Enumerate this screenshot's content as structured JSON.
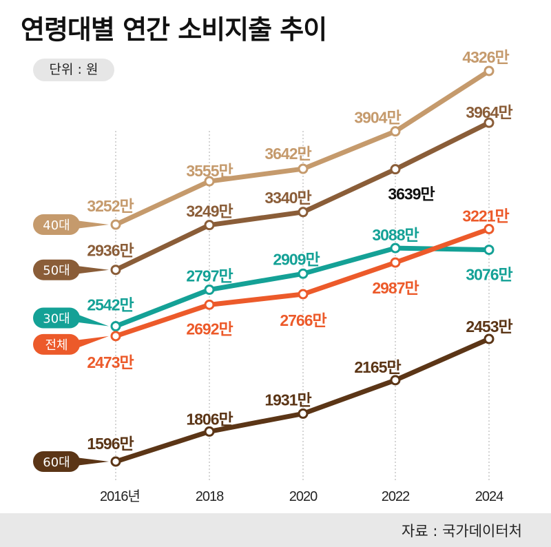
{
  "title": "연령대별 연간 소비지출 추이",
  "unit_label": "단위 : 원",
  "source": "자료 : 국가데이터처",
  "chart_data": {
    "type": "line",
    "title": "연령대별 연간 소비지출 추이",
    "unit": "단위 : 원",
    "x": [
      "2016년",
      "2018",
      "2020",
      "2022",
      "2024"
    ],
    "value_suffix": "만",
    "ylim": [
      1596,
      4326
    ],
    "grid": "vertical dotted lines at each year",
    "legend": "left, pill labels attached to first point",
    "series": [
      {
        "name": "40대",
        "color": "#c59a6c",
        "values": [
          3252,
          3555,
          3642,
          3904,
          4326
        ]
      },
      {
        "name": "50대",
        "color": "#8a5d38",
        "values": [
          2936,
          3249,
          3340,
          3639,
          3964
        ],
        "label_colors": [
          "#8a5d38",
          "#8a5d38",
          "#8a5d38",
          "#111111",
          "#8a5d38"
        ]
      },
      {
        "name": "30대",
        "color": "#14a196",
        "values": [
          2542,
          2797,
          2909,
          3088,
          3076
        ]
      },
      {
        "name": "전체",
        "color": "#ec5a2a",
        "values": [
          2473,
          2692,
          2766,
          2987,
          3221
        ]
      },
      {
        "name": "60대",
        "color": "#5b3516",
        "values": [
          1596,
          1806,
          1931,
          2165,
          2453
        ]
      }
    ]
  }
}
